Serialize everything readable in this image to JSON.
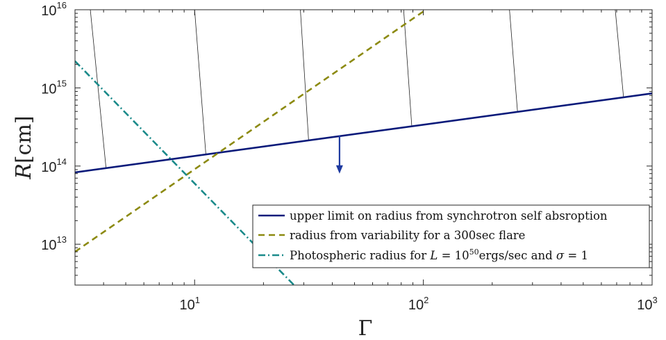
{
  "chart_data": {
    "type": "line",
    "xscale": "log",
    "yscale": "log",
    "xlim": [
      3,
      1000
    ],
    "ylim": [
      3000000000000.0,
      1e+16
    ],
    "xlabel": "Γ",
    "ylabel": "R[cm]",
    "x_ticks": [
      {
        "value": 10,
        "base": "10",
        "exp": "1"
      },
      {
        "value": 100,
        "base": "10",
        "exp": "2"
      },
      {
        "value": 1000,
        "base": "10",
        "exp": "3"
      }
    ],
    "y_ticks": [
      {
        "value": 10000000000000.0,
        "base": "10",
        "exp": "13"
      },
      {
        "value": 100000000000000.0,
        "base": "10",
        "exp": "14"
      },
      {
        "value": 1000000000000000.0,
        "base": "10",
        "exp": "15"
      },
      {
        "value": 1e+16,
        "base": "10",
        "exp": "16"
      }
    ],
    "series": [
      {
        "name": "upper limit on radius from synchrotron self absroption",
        "style": "solid",
        "color": "#0a1a7a",
        "x": [
          3,
          1000
        ],
        "y": [
          83000000000000.0,
          850000000000000.0
        ]
      },
      {
        "name": "radius from variability for a 300sec flare",
        "style": "dashed",
        "color": "#8c8a10",
        "x": [
          3,
          100
        ],
        "y": [
          8000000000000.0,
          9500000000000000.0
        ]
      },
      {
        "name": "Photospheric radius for L = 10^50 ergs/sec and σ = 1",
        "style": "dashdot",
        "color": "#1a8a8a",
        "x": [
          3,
          27.5
        ],
        "y": [
          2200000000000000.0,
          2900000000000.0
        ]
      }
    ],
    "hatch_lines": [
      {
        "x_top": 3.5,
        "x_bottom": 4.1
      },
      {
        "x_top": 10,
        "x_bottom": 11.2
      },
      {
        "x_top": 29,
        "x_bottom": 31.5
      },
      {
        "x_top": 82,
        "x_bottom": 89
      },
      {
        "x_top": 238,
        "x_bottom": 258
      },
      {
        "x_top": 690,
        "x_bottom": 750
      }
    ],
    "arrow": {
      "x": 43,
      "y_from": 245000000000000.0,
      "y_to": 80000000000000.0,
      "color": "#1e3aa0"
    },
    "legend_position": "bottom-right",
    "grid": false
  }
}
